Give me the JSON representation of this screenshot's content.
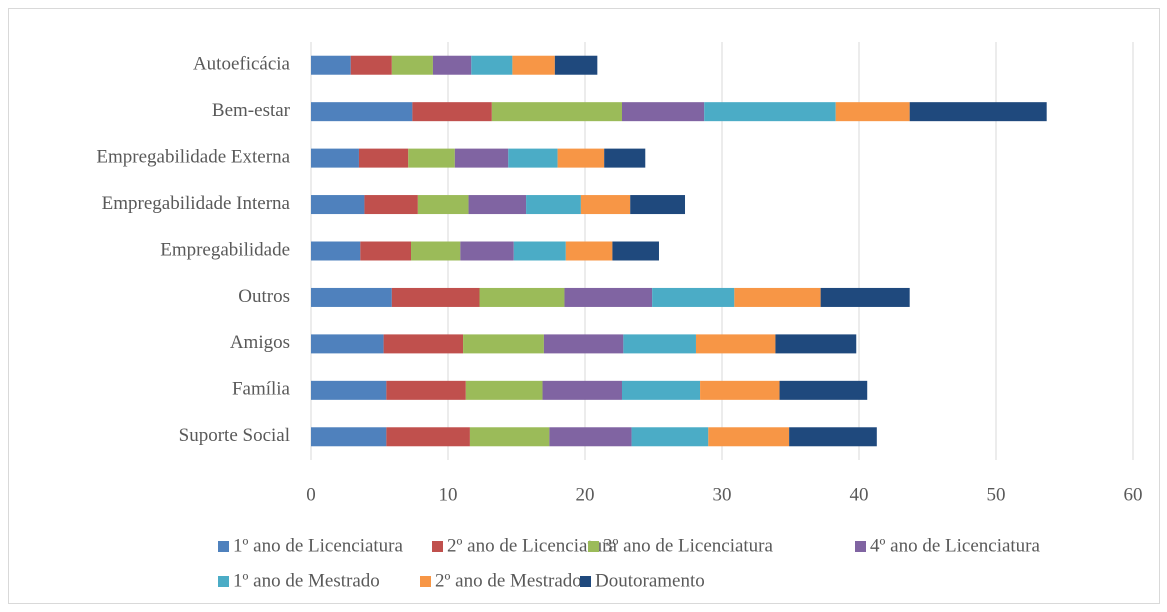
{
  "chart_data": {
    "type": "bar",
    "orientation": "horizontal",
    "stacked": true,
    "categories": [
      "Autoeficácia",
      "Bem-estar",
      "Empregabilidade Externa",
      "Empregabilidade Interna",
      "Empregabilidade",
      "Outros",
      "Amigos",
      "Família",
      "Suporte Social"
    ],
    "series": [
      {
        "name": "1º ano de Licenciatura",
        "color": "#4f81bd",
        "values": [
          2.9,
          7.4,
          3.5,
          3.9,
          3.6,
          5.9,
          5.3,
          5.5,
          5.5
        ]
      },
      {
        "name": "2º ano de Licenciatura",
        "color": "#c0504d",
        "values": [
          3.0,
          5.8,
          3.6,
          3.9,
          3.7,
          6.4,
          5.8,
          5.8,
          6.1
        ]
      },
      {
        "name": "3º ano de Licenciatura",
        "color": "#9bbb59",
        "values": [
          3.0,
          9.5,
          3.4,
          3.7,
          3.6,
          6.2,
          5.9,
          5.6,
          5.8
        ]
      },
      {
        "name": "4º ano de Licenciatura",
        "color": "#8064a2",
        "values": [
          2.8,
          6.0,
          3.9,
          4.2,
          3.9,
          6.4,
          5.8,
          5.8,
          6.0
        ]
      },
      {
        "name": "1º ano de Mestrado",
        "color": "#4bacc6",
        "values": [
          3.0,
          9.6,
          3.6,
          4.0,
          3.8,
          6.0,
          5.3,
          5.7,
          5.6
        ]
      },
      {
        "name": "2º ano de Mestrado",
        "color": "#f79646",
        "values": [
          3.1,
          5.4,
          3.4,
          3.6,
          3.4,
          6.3,
          5.8,
          5.8,
          5.9
        ]
      },
      {
        "name": "Doutoramento",
        "color": "#1f497d",
        "values": [
          3.1,
          10.0,
          3.0,
          4.0,
          3.4,
          6.5,
          5.9,
          6.4,
          6.4
        ]
      }
    ],
    "xlim": [
      0,
      60
    ],
    "xticks": [
      0,
      10,
      20,
      30,
      40,
      50,
      60
    ],
    "grid": true,
    "legend": "bottom"
  }
}
